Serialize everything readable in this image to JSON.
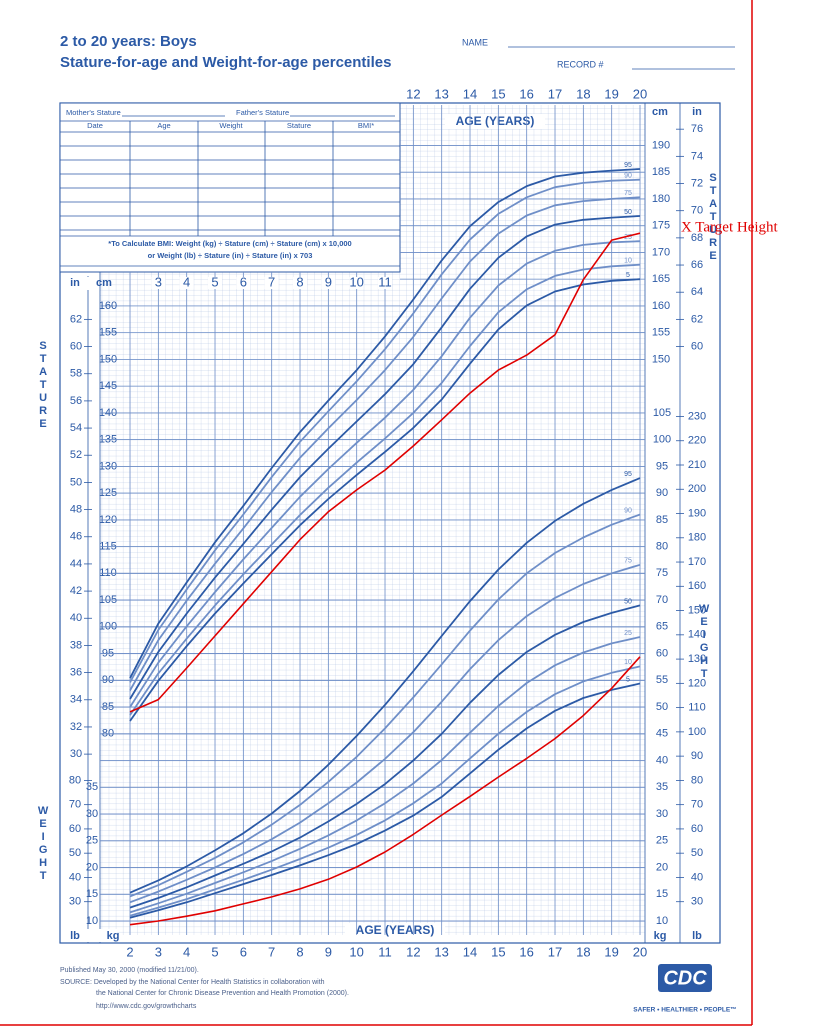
{
  "form": {
    "name_label": "NAME",
    "record_label": "RECORD #",
    "mothers_stature": "Mother's Stature",
    "fathers_stature": "Father's Stature",
    "columns": [
      "Date",
      "Age",
      "Weight",
      "Stature",
      "BMI*"
    ],
    "bmi_note": [
      "*To Calculate BMI: Weight (kg) ÷ Stature (cm) ÷ Stature (cm) x 10,000",
      "or Weight (lb) ÷ Stature (in) ÷ Stature (in) x 703"
    ]
  },
  "footer": {
    "lines": [
      "Published May 30, 2000 (modified 11/21/00).",
      "SOURCE: Developed by the National Center for Health Statistics in collaboration with",
      "the National Center for Chronic Disease Prevention and Health Promotion (2000).",
      "http://www.cdc.gov/growthcharts"
    ],
    "logo": "CDC",
    "tagline": "SAFER • HEALTHIER • PEOPLE™"
  },
  "chart_data": {
    "type": "line",
    "title": "2 to 20 years: Boys",
    "subtitle": "Stature-for-age and Weight-for-age percentiles",
    "x_label": "AGE (YEARS)",
    "y_label": "STATURE",
    "y2_label": "WEIGHT",
    "units": {
      "cm": "cm",
      "in": "in",
      "kg": "kg",
      "lb": "lb"
    },
    "x": [
      2,
      3,
      4,
      5,
      6,
      7,
      8,
      9,
      10,
      11,
      12,
      13,
      14,
      15,
      16,
      17,
      18,
      19,
      20
    ],
    "xlim": [
      2,
      20
    ],
    "xticks": [
      2,
      3,
      4,
      5,
      6,
      7,
      8,
      9,
      10,
      11,
      12,
      13,
      14,
      15,
      16,
      17,
      18,
      19,
      20
    ],
    "xticks_top": [
      12,
      13,
      14,
      15,
      16,
      17,
      18,
      19,
      20
    ],
    "xticks_middle": [
      3,
      4,
      5,
      6,
      7,
      8,
      9,
      10,
      11
    ],
    "ylim": [
      45,
      197
    ],
    "yticks": [
      80,
      85,
      90,
      95,
      100,
      105,
      110,
      115,
      120,
      125,
      130,
      135,
      140,
      145,
      150,
      155,
      160
    ],
    "yticks_right": [
      150,
      155,
      160,
      165,
      170,
      175,
      180,
      185,
      190
    ],
    "y2lim": [
      10,
      162
    ],
    "y2ticks": [
      10,
      15,
      20,
      25,
      30,
      35,
      40,
      45,
      50,
      55,
      60,
      65,
      70,
      75,
      80,
      85,
      90,
      95,
      100,
      105
    ],
    "y2ticks_left": [
      10,
      15,
      20,
      25,
      30,
      35
    ],
    "in_ticks_left": [
      30,
      32,
      34,
      36,
      38,
      40,
      42,
      44,
      46,
      48,
      50,
      52,
      54,
      56,
      58,
      60,
      62
    ],
    "in_ticks_right": [
      60,
      62,
      64,
      66,
      68,
      70,
      72,
      74,
      76
    ],
    "lb_ticks_left": [
      30,
      40,
      50,
      60,
      70,
      80
    ],
    "lb_ticks_right": [
      30,
      40,
      50,
      60,
      70,
      80,
      90,
      100,
      110,
      120,
      130,
      140,
      150,
      160,
      170,
      180,
      190,
      200,
      210,
      220,
      230
    ],
    "grid": true,
    "series": [
      {
        "name": "95",
        "color": "#2c5aa6",
        "values": [
          90.4,
          100.6,
          108.3,
          115.8,
          122.6,
          129.7,
          136.4,
          142.3,
          148.0,
          154.3,
          161.2,
          168.5,
          174.9,
          179.4,
          182.4,
          184.2,
          184.9,
          185.3,
          185.6
        ]
      },
      {
        "name": "90",
        "color": "#6f8fc8",
        "values": [
          89.6,
          99.4,
          107.0,
          114.3,
          121.0,
          128.0,
          134.6,
          140.3,
          145.9,
          151.9,
          158.6,
          165.9,
          172.4,
          177.2,
          180.3,
          182.2,
          183.0,
          183.4,
          183.6
        ]
      },
      {
        "name": "75",
        "color": "#6f8fc8",
        "values": [
          88.1,
          97.5,
          104.9,
          111.8,
          118.4,
          125.2,
          131.6,
          137.1,
          142.4,
          148.0,
          154.2,
          161.4,
          168.3,
          173.5,
          176.9,
          178.8,
          179.6,
          180.0,
          180.3
        ]
      },
      {
        "name": "50",
        "color": "#2c5aa6",
        "values": [
          86.5,
          95.3,
          102.5,
          109.2,
          115.5,
          121.9,
          128.0,
          133.3,
          138.4,
          143.5,
          149.1,
          156.0,
          163.2,
          169.0,
          173.0,
          175.2,
          176.1,
          176.5,
          176.8
        ]
      },
      {
        "name": "25",
        "color": "#6f8fc8",
        "values": [
          85.0,
          93.3,
          100.1,
          106.5,
          112.6,
          118.5,
          124.3,
          129.5,
          134.4,
          139.1,
          144.3,
          150.6,
          157.8,
          163.8,
          167.9,
          170.3,
          171.4,
          171.9,
          172.1
        ]
      },
      {
        "name": "10",
        "color": "#6f8fc8",
        "values": [
          83.5,
          91.3,
          97.8,
          104.0,
          109.8,
          115.4,
          120.9,
          126.0,
          130.7,
          135.2,
          140.0,
          145.6,
          152.5,
          158.8,
          163.1,
          165.6,
          166.8,
          167.4,
          167.7
        ]
      },
      {
        "name": "5",
        "color": "#2c5aa6",
        "values": [
          82.4,
          89.9,
          96.4,
          102.5,
          108.1,
          113.6,
          119.0,
          123.9,
          128.4,
          132.7,
          137.2,
          142.5,
          149.2,
          155.6,
          160.1,
          162.7,
          164.0,
          164.7,
          165.0
        ]
      },
      {
        "name": "95",
        "color": "#2c5aa6",
        "axis": "y2",
        "values": [
          15.3,
          17.6,
          20.2,
          23.2,
          26.4,
          30.1,
          34.3,
          39.2,
          44.6,
          50.4,
          56.7,
          63.3,
          69.8,
          75.7,
          80.7,
          84.8,
          88.0,
          90.6,
          92.8
        ]
      },
      {
        "name": "90",
        "color": "#6f8fc8",
        "axis": "y2",
        "values": [
          14.6,
          16.7,
          19.2,
          21.8,
          24.7,
          28.0,
          31.7,
          36.0,
          40.7,
          46.0,
          51.8,
          58.0,
          64.3,
          70.1,
          75.0,
          78.8,
          81.7,
          84.1,
          86.0
        ]
      },
      {
        "name": "75",
        "color": "#6f8fc8",
        "axis": "y2",
        "values": [
          13.5,
          15.5,
          17.7,
          20.0,
          22.5,
          25.3,
          28.4,
          32.0,
          35.9,
          40.3,
          45.3,
          51.0,
          57.1,
          62.5,
          67.0,
          70.4,
          73.0,
          75.0,
          76.6
        ]
      },
      {
        "name": "50",
        "color": "#2c5aa6",
        "axis": "y2",
        "values": [
          12.5,
          14.3,
          16.3,
          18.5,
          20.7,
          23.0,
          25.6,
          28.6,
          31.9,
          35.6,
          40.0,
          45.0,
          50.8,
          56.0,
          60.3,
          63.5,
          65.9,
          67.6,
          69.0
        ]
      },
      {
        "name": "25",
        "color": "#6f8fc8",
        "axis": "y2",
        "values": [
          11.6,
          13.3,
          15.1,
          17.1,
          19.1,
          21.2,
          23.5,
          26.0,
          28.8,
          32.0,
          35.7,
          40.1,
          45.2,
          50.2,
          54.5,
          57.8,
          60.2,
          61.9,
          63.1
        ]
      },
      {
        "name": "10",
        "color": "#6f8fc8",
        "axis": "y2",
        "values": [
          11.0,
          12.5,
          14.1,
          15.9,
          17.7,
          19.6,
          21.6,
          23.7,
          26.1,
          28.8,
          32.0,
          35.7,
          40.4,
          45.0,
          49.1,
          52.4,
          54.8,
          56.4,
          57.6
        ]
      },
      {
        "name": "5",
        "color": "#2c5aa6",
        "axis": "y2",
        "values": [
          10.6,
          12.0,
          13.5,
          15.2,
          16.9,
          18.6,
          20.4,
          22.3,
          24.4,
          26.9,
          29.7,
          33.2,
          37.6,
          42.0,
          46.0,
          49.3,
          51.7,
          53.2,
          54.4
        ]
      },
      {
        "color": "#e00000",
        "values": [
          84.1,
          86.4,
          92.3,
          98.3,
          104.3,
          110.3,
          116.3,
          121.5,
          125.6,
          129.3,
          133.8,
          138.7,
          143.7,
          148.0,
          150.8,
          154.6,
          164.9,
          172.3,
          173.6
        ]
      },
      {
        "color": "#e00000",
        "axis": "y2",
        "values": [
          9.3,
          10.0,
          10.9,
          11.9,
          13.2,
          14.5,
          16.0,
          17.8,
          20.1,
          22.9,
          26.2,
          29.8,
          33.3,
          36.9,
          40.4,
          44.1,
          48.4,
          53.5,
          59.4
        ]
      }
    ],
    "annotation": {
      "text": "X Target Height",
      "color": "#e00000"
    }
  }
}
